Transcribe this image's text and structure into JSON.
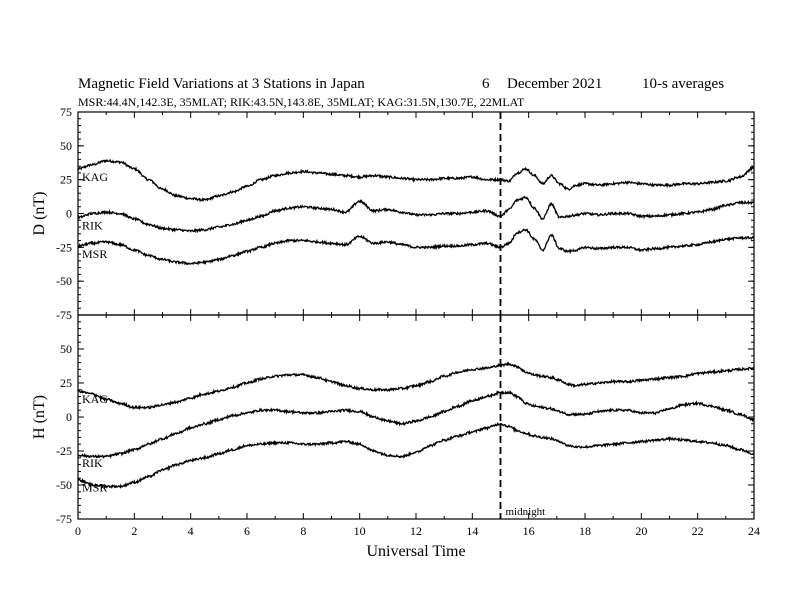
{
  "header": {
    "title": "Magnetic Field Variations at 3 Stations in Japan",
    "date_day": "6",
    "date_month_year": "December 2021",
    "averaging": "10-s averages",
    "stations_line": "MSR:44.4N,142.3E, 35MLAT;  RIK:43.5N,143.8E, 35MLAT;  KAG:31.5N,130.7E, 22MLAT"
  },
  "chart_data": [
    {
      "type": "line",
      "panel": "top",
      "ylabel": "D (nT)",
      "ylim": [
        -75,
        75
      ],
      "yticks": [
        75,
        50,
        25,
        0,
        -25,
        -50,
        -75
      ],
      "xlim": [
        0,
        24
      ],
      "marker": {
        "x": 15,
        "style": "dashed"
      },
      "series": [
        {
          "name": "KAG",
          "x": [
            0,
            0.5,
            1,
            1.5,
            2,
            2.5,
            3,
            3.5,
            4,
            4.5,
            5,
            5.5,
            6,
            6.5,
            7,
            7.5,
            8,
            8.5,
            9,
            9.5,
            10,
            10.5,
            11,
            11.5,
            12,
            12.5,
            13,
            13.5,
            14,
            14.5,
            15,
            15.3,
            15.6,
            15.9,
            16.2,
            16.5,
            16.8,
            17.1,
            17.4,
            17.7,
            18,
            18.5,
            19,
            19.5,
            20,
            20.5,
            21,
            21.5,
            22,
            22.5,
            23,
            23.5,
            24
          ],
          "y": [
            33,
            36,
            39,
            38,
            33,
            25,
            18,
            13,
            11,
            10,
            13,
            16,
            20,
            25,
            28,
            30,
            31,
            30,
            29,
            28,
            27,
            28,
            27,
            26,
            25,
            25,
            26,
            26,
            27,
            25,
            25,
            24,
            30,
            33,
            28,
            22,
            28,
            22,
            18,
            21,
            22,
            21,
            22,
            23,
            22,
            21,
            21,
            22,
            22,
            23,
            24,
            27,
            34
          ]
        },
        {
          "name": "RIK",
          "x": [
            0,
            0.5,
            1,
            1.5,
            2,
            2.5,
            3,
            3.5,
            4,
            4.5,
            5,
            5.5,
            6,
            6.5,
            7,
            7.5,
            8,
            8.5,
            9,
            9.5,
            10,
            10.5,
            11,
            11.5,
            12,
            12.5,
            13,
            13.5,
            14,
            14.5,
            15,
            15.3,
            15.6,
            15.9,
            16.2,
            16.5,
            16.8,
            17.1,
            17.4,
            17.7,
            18,
            18.5,
            19,
            19.5,
            20,
            20.5,
            21,
            21.5,
            22,
            22.5,
            23,
            23.5,
            24
          ],
          "y": [
            -3,
            0,
            1,
            0,
            -4,
            -8,
            -11,
            -12,
            -13,
            -12,
            -10,
            -8,
            -5,
            -2,
            2,
            4,
            5,
            4,
            3,
            1,
            9,
            2,
            3,
            1,
            -1,
            -1,
            0,
            0,
            1,
            2,
            -2,
            3,
            10,
            12,
            4,
            -4,
            7,
            -3,
            -2,
            -1,
            0,
            -1,
            0,
            0,
            -2,
            -2,
            -1,
            0,
            1,
            3,
            6,
            8,
            8
          ]
        },
        {
          "name": "MSR",
          "x": [
            0,
            0.5,
            1,
            1.5,
            2,
            2.5,
            3,
            3.5,
            4,
            4.5,
            5,
            5.5,
            6,
            6.5,
            7,
            7.5,
            8,
            8.5,
            9,
            9.5,
            10,
            10.5,
            11,
            11.5,
            12,
            12.5,
            13,
            13.5,
            14,
            14.5,
            15,
            15.3,
            15.6,
            15.9,
            16.2,
            16.5,
            16.8,
            17.1,
            17.4,
            17.7,
            18,
            18.5,
            19,
            19.5,
            20,
            20.5,
            21,
            21.5,
            22,
            22.5,
            23,
            23.5,
            24
          ],
          "y": [
            -24,
            -22,
            -21,
            -23,
            -27,
            -31,
            -34,
            -36,
            -37,
            -36,
            -34,
            -31,
            -28,
            -25,
            -22,
            -20,
            -20,
            -21,
            -22,
            -23,
            -17,
            -22,
            -21,
            -23,
            -25,
            -25,
            -24,
            -24,
            -23,
            -22,
            -25,
            -22,
            -14,
            -12,
            -19,
            -27,
            -16,
            -26,
            -28,
            -27,
            -25,
            -26,
            -25,
            -25,
            -27,
            -26,
            -25,
            -24,
            -23,
            -21,
            -19,
            -18,
            -18
          ]
        }
      ]
    },
    {
      "type": "line",
      "panel": "bottom",
      "ylabel": "H (nT)",
      "xlabel": "Universal Time",
      "ylim": [
        -75,
        75
      ],
      "yticks": [
        50,
        25,
        0,
        -25,
        -50,
        -75
      ],
      "xlim": [
        0,
        24
      ],
      "xticks": [
        0,
        2,
        4,
        6,
        8,
        10,
        12,
        14,
        16,
        18,
        20,
        22,
        24
      ],
      "marker": {
        "x": 15,
        "style": "dashed",
        "label": "midnight"
      },
      "series": [
        {
          "name": "KAG",
          "x": [
            0,
            0.5,
            1,
            1.5,
            2,
            2.5,
            3,
            3.5,
            4,
            4.5,
            5,
            5.5,
            6,
            6.5,
            7,
            7.5,
            8,
            8.5,
            9,
            9.5,
            10,
            10.5,
            11,
            11.5,
            12,
            12.5,
            13,
            13.5,
            14,
            14.5,
            15,
            15.3,
            15.6,
            15.9,
            16.2,
            16.5,
            16.8,
            17.1,
            17.4,
            17.7,
            18,
            18.5,
            19,
            19.5,
            20,
            20.5,
            21,
            21.5,
            22,
            22.5,
            23,
            23.5,
            24
          ],
          "y": [
            19,
            17,
            13,
            10,
            7,
            7,
            9,
            11,
            14,
            17,
            19,
            22,
            25,
            28,
            30,
            31,
            31,
            29,
            26,
            23,
            21,
            20,
            20,
            21,
            23,
            26,
            30,
            33,
            35,
            36,
            38,
            39,
            37,
            33,
            31,
            30,
            29,
            27,
            24,
            23,
            24,
            25,
            26,
            26,
            27,
            28,
            29,
            30,
            32,
            33,
            34,
            35,
            36
          ]
        },
        {
          "name": "RIK",
          "x": [
            0,
            0.5,
            1,
            1.5,
            2,
            2.5,
            3,
            3.5,
            4,
            4.5,
            5,
            5.5,
            6,
            6.5,
            7,
            7.5,
            8,
            8.5,
            9,
            9.5,
            10,
            10.5,
            11,
            11.5,
            12,
            12.5,
            13,
            13.5,
            14,
            14.5,
            15,
            15.3,
            15.6,
            15.9,
            16.2,
            16.5,
            16.8,
            17.1,
            17.4,
            17.7,
            18,
            18.5,
            19,
            19.5,
            20,
            20.5,
            21,
            21.5,
            22,
            22.5,
            23,
            23.5,
            24
          ],
          "y": [
            -28,
            -29,
            -29,
            -27,
            -24,
            -20,
            -16,
            -12,
            -8,
            -5,
            -2,
            1,
            3,
            5,
            5,
            4,
            3,
            3,
            4,
            5,
            4,
            0,
            -3,
            -5,
            -3,
            0,
            4,
            8,
            12,
            15,
            18,
            18,
            15,
            10,
            8,
            7,
            6,
            4,
            2,
            2,
            2,
            4,
            5,
            5,
            3,
            3,
            6,
            9,
            10,
            8,
            5,
            2,
            -2
          ]
        },
        {
          "name": "MSR",
          "x": [
            0,
            0.5,
            1,
            1.5,
            2,
            2.5,
            3,
            3.5,
            4,
            4.5,
            5,
            5.5,
            6,
            6.5,
            7,
            7.5,
            8,
            8.5,
            9,
            9.5,
            10,
            10.5,
            11,
            11.5,
            12,
            12.5,
            13,
            13.5,
            14,
            14.5,
            15,
            15.3,
            15.6,
            15.9,
            16.2,
            16.5,
            16.8,
            17.1,
            17.4,
            17.7,
            18,
            18.5,
            19,
            19.5,
            20,
            20.5,
            21,
            21.5,
            22,
            22.5,
            23,
            23.5,
            24
          ],
          "y": [
            -46,
            -50,
            -51,
            -51,
            -48,
            -44,
            -39,
            -35,
            -32,
            -30,
            -27,
            -24,
            -21,
            -20,
            -19,
            -19,
            -20,
            -20,
            -19,
            -18,
            -20,
            -25,
            -28,
            -29,
            -26,
            -21,
            -17,
            -14,
            -11,
            -8,
            -5,
            -7,
            -10,
            -12,
            -14,
            -15,
            -16,
            -18,
            -21,
            -22,
            -22,
            -21,
            -20,
            -19,
            -18,
            -17,
            -16,
            -17,
            -18,
            -19,
            -21,
            -24,
            -27
          ]
        }
      ]
    }
  ]
}
